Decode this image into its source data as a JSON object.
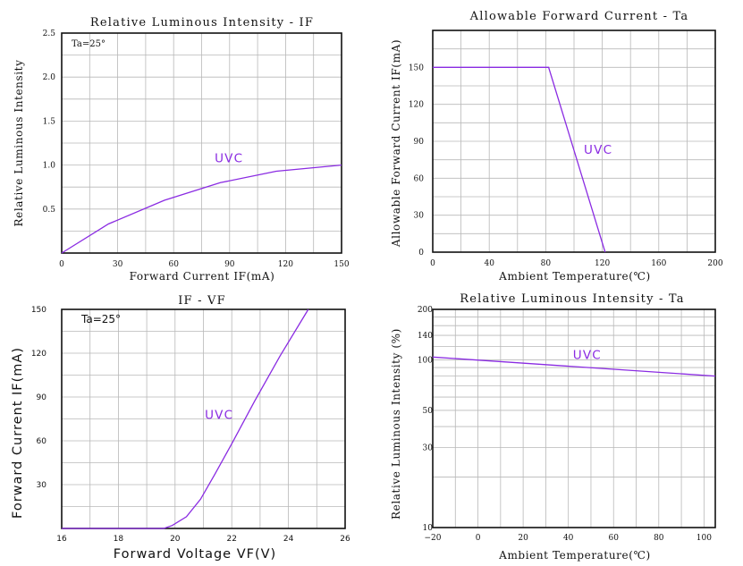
{
  "chart_data": [
    {
      "type": "line",
      "title": "Relative Luminous Intensity - IF",
      "xlabel": "Forward Current IF(mA)",
      "ylabel": "Relative Luminous Intensity",
      "xlim": [
        0,
        150
      ],
      "ylim": [
        0,
        2.5
      ],
      "x_ticks": [
        0,
        30,
        60,
        90,
        120,
        150
      ],
      "x_tick_labels": [
        "0",
        "30",
        "60",
        "90",
        "120",
        "150"
      ],
      "y_ticks": [
        0.5,
        1.0,
        1.5,
        2.0,
        2.5
      ],
      "y_tick_labels": [
        "0.5",
        "1.0",
        "1.5",
        "2.0",
        "2.5"
      ],
      "x_grid": [
        15,
        30,
        45,
        60,
        75,
        90,
        105,
        120,
        135
      ],
      "y_grid": [
        0.25,
        0.5,
        0.75,
        1.0,
        1.25,
        1.5,
        1.75,
        2.0,
        2.25
      ],
      "annotation": "Ta=25°",
      "series": [
        {
          "name": "UVC",
          "x": [
            0,
            25,
            55,
            85,
            115,
            150
          ],
          "y": [
            0,
            0.33,
            0.6,
            0.8,
            0.93,
            1.0
          ],
          "label_at": [
            82,
            1.03
          ]
        }
      ]
    },
    {
      "type": "line",
      "title": "Allowable Forward Current - Ta",
      "xlabel": "Ambient Temperature(℃)",
      "ylabel": "Allowable Forward Current IF(mA)",
      "xlim": [
        0,
        200
      ],
      "ylim": [
        0,
        180
      ],
      "x_ticks": [
        0,
        40,
        80,
        120,
        160,
        200
      ],
      "x_tick_labels": [
        "0",
        "40",
        "80",
        "120",
        "160",
        "200"
      ],
      "y_ticks": [
        0,
        30,
        60,
        90,
        120,
        150
      ],
      "y_tick_labels": [
        "0",
        "30",
        "60",
        "90",
        "120",
        "150"
      ],
      "x_grid": [
        20,
        40,
        60,
        80,
        100,
        120,
        140,
        160,
        180
      ],
      "y_grid": [
        15,
        30,
        45,
        60,
        75,
        90,
        105,
        120,
        135,
        150,
        165
      ],
      "series": [
        {
          "name": "UVC",
          "x": [
            0,
            82,
            122
          ],
          "y": [
            150,
            150,
            0
          ],
          "label_at": [
            107,
            80
          ]
        }
      ]
    },
    {
      "type": "line",
      "title": "IF - VF",
      "xlabel": "Forward Voltage VF(V)",
      "ylabel": "Forward Current IF(mA)",
      "xlim": [
        16,
        26
      ],
      "ylim": [
        0,
        150
      ],
      "x_ticks": [
        16,
        18,
        20,
        22,
        24,
        26
      ],
      "x_tick_labels": [
        "16",
        "18",
        "20",
        "22",
        "24",
        "26"
      ],
      "y_ticks": [
        30,
        60,
        90,
        120,
        150
      ],
      "y_tick_labels": [
        "30",
        "60",
        "90",
        "120",
        "150"
      ],
      "x_grid": [
        17,
        18,
        19,
        20,
        21,
        22,
        23,
        24,
        25
      ],
      "y_grid": [
        15,
        30,
        45,
        60,
        75,
        90,
        105,
        120,
        135
      ],
      "annotation": "Ta=25°",
      "series": [
        {
          "name": "UVC",
          "x": [
            16,
            19.6,
            19.9,
            20.4,
            20.9,
            21.4,
            22.0,
            22.8,
            23.7,
            24.7
          ],
          "y": [
            0,
            0,
            2,
            8,
            20,
            37,
            58,
            87,
            118,
            150
          ],
          "label_at": [
            21.05,
            75
          ]
        }
      ]
    },
    {
      "type": "line",
      "title": "Relative Luminous Intensity - Ta",
      "xlabel": "Ambient Temperature(℃)",
      "ylabel": "Relative Luminous Intensity (%)",
      "xlim": [
        -20,
        105
      ],
      "ylim": [
        10,
        200
      ],
      "y_scale": "log",
      "x_ticks": [
        -20,
        0,
        20,
        40,
        60,
        80,
        100
      ],
      "x_tick_labels": [
        "−20",
        "0",
        "20",
        "40",
        "60",
        "80",
        "100"
      ],
      "y_ticks": [
        10,
        30,
        50,
        100,
        140,
        200
      ],
      "y_tick_labels": [
        "10",
        "30",
        "50",
        "100",
        "140",
        "200"
      ],
      "x_grid": [
        -10,
        0,
        10,
        20,
        30,
        40,
        50,
        60,
        70,
        80,
        90,
        100
      ],
      "y_grid": [
        20,
        30,
        40,
        50,
        60,
        70,
        80,
        90,
        100,
        120,
        140,
        160,
        180
      ],
      "series": [
        {
          "name": "UVC",
          "x": [
            -20,
            105
          ],
          "y": [
            104,
            80
          ],
          "label_at": [
            42,
            101
          ]
        }
      ]
    }
  ]
}
